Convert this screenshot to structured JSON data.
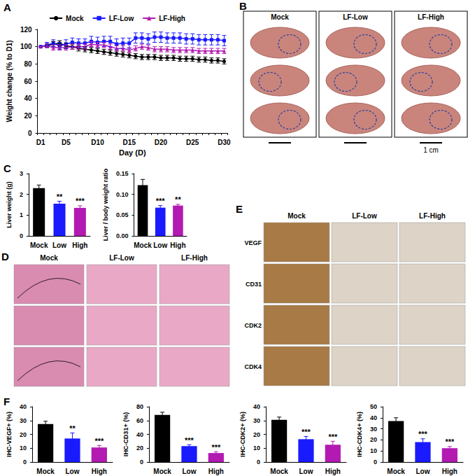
{
  "chart_data": [
    {
      "type": "line",
      "title": "A",
      "x_label": "Day (D)",
      "y_label": "Weight change (% to D1)",
      "categories": [
        "D1",
        null,
        null,
        null,
        "D5",
        null,
        null,
        null,
        null,
        "D10",
        null,
        null,
        null,
        null,
        "D15",
        null,
        null,
        null,
        null,
        "D20",
        null,
        null,
        null,
        null,
        "D25",
        null,
        null,
        null,
        null,
        "D30"
      ],
      "ylim": [
        0,
        120
      ],
      "yticks": [
        0,
        20,
        40,
        60,
        80,
        100,
        120
      ],
      "grid": false,
      "legend": "top",
      "series": [
        {
          "name": "Mock",
          "color": "#000000",
          "marker": "circle",
          "values": [
            100,
            101,
            103,
            104,
            101,
            100,
            98,
            97,
            96,
            95,
            94,
            93,
            92,
            91,
            90,
            89,
            88,
            88,
            88,
            87,
            87,
            87,
            86,
            86,
            86,
            85,
            85,
            84,
            84,
            83
          ],
          "errors": [
            0,
            2,
            3,
            3,
            3,
            3,
            3,
            3,
            3,
            3,
            3,
            3,
            3,
            3,
            3,
            3,
            3,
            3,
            3,
            3,
            3,
            3,
            3,
            3,
            3,
            3,
            3,
            3,
            3,
            3
          ]
        },
        {
          "name": "LF-Low",
          "color": "#1a1aff",
          "marker": "square",
          "values": [
            100,
            102,
            104,
            101,
            103,
            105,
            104,
            104,
            106,
            105,
            106,
            106,
            103,
            104,
            104,
            110,
            110,
            109,
            111,
            111,
            110,
            110,
            110,
            109,
            109,
            108,
            108,
            108,
            108,
            107
          ],
          "errors": [
            0,
            3,
            4,
            4,
            5,
            5,
            5,
            5,
            6,
            6,
            6,
            6,
            6,
            6,
            6,
            6,
            6,
            6,
            6,
            6,
            6,
            6,
            6,
            6,
            6,
            6,
            6,
            6,
            6,
            6
          ]
        },
        {
          "name": "LF-High",
          "color": "#b21ab2",
          "marker": "triangle",
          "values": [
            100,
            101,
            99,
            99,
            99,
            100,
            100,
            100,
            103,
            102,
            102,
            100,
            98,
            98,
            96,
            98,
            100,
            99,
            97,
            97,
            97,
            96,
            96,
            96,
            96,
            95,
            95,
            95,
            95,
            95
          ],
          "errors": [
            0,
            2,
            3,
            3,
            3,
            3,
            3,
            3,
            3,
            3,
            3,
            3,
            3,
            3,
            3,
            3,
            3,
            3,
            3,
            3,
            3,
            3,
            3,
            3,
            3,
            3,
            3,
            3,
            3,
            3
          ]
        }
      ]
    },
    {
      "type": "bar",
      "title": "C",
      "y_label": "Liver weight (g)",
      "categories": [
        "Mock",
        "Low",
        "High"
      ],
      "values": [
        2.3,
        1.55,
        1.35
      ],
      "errors": [
        0.15,
        0.12,
        0.1
      ],
      "annotations": [
        null,
        "**",
        "***"
      ],
      "colors": [
        "#000000",
        "#1a1aff",
        "#b21ab2"
      ],
      "ylim": [
        0,
        3
      ],
      "yticks": [
        0,
        1,
        2,
        3
      ],
      "grid": false
    },
    {
      "type": "bar",
      "y_label": "Liver / body weight ratio",
      "categories": [
        "Mock",
        "Low",
        "High"
      ],
      "values": [
        0.122,
        0.068,
        0.073
      ],
      "errors": [
        0.014,
        0.005,
        0.003
      ],
      "annotations": [
        null,
        "***",
        "**"
      ],
      "colors": [
        "#000000",
        "#1a1aff",
        "#b21ab2"
      ],
      "ylim": [
        0,
        0.15
      ],
      "yticks": [
        {
          "value": 0,
          "label": "0.00"
        },
        {
          "value": 0.05,
          "label": "0.05"
        },
        {
          "value": 0.1,
          "label": "0.10"
        },
        {
          "value": 0.15,
          "label": "0.15"
        }
      ],
      "grid": false
    },
    {
      "type": "bar",
      "title": "F",
      "y_label": "IHC-VEGF+ (%)",
      "categories": [
        "Mock",
        "Low",
        "High"
      ],
      "values": [
        27.5,
        17,
        10.5
      ],
      "errors": [
        2,
        4,
        1.5
      ],
      "annotations": [
        null,
        "**",
        "***"
      ],
      "colors": [
        "#000000",
        "#1a1aff",
        "#b21ab2"
      ],
      "ylim": [
        0,
        40
      ],
      "yticks": [
        0,
        10,
        20,
        30,
        40
      ],
      "grid": false
    },
    {
      "type": "bar",
      "y_label": "IHC-CD31+ (%)",
      "categories": [
        "Mock",
        "Low",
        "High"
      ],
      "values": [
        68,
        23,
        13
      ],
      "errors": [
        4,
        2,
        2
      ],
      "annotations": [
        null,
        "***",
        "***"
      ],
      "colors": [
        "#000000",
        "#1a1aff",
        "#b21ab2"
      ],
      "ylim": [
        0,
        80
      ],
      "yticks": [
        0,
        20,
        40,
        60,
        80
      ],
      "grid": false
    },
    {
      "type": "bar",
      "y_label": "IHC-CDK2+ (%)",
      "categories": [
        "Mock",
        "Low",
        "High"
      ],
      "values": [
        30.5,
        16.5,
        12.5
      ],
      "errors": [
        2,
        2,
        2.5
      ],
      "annotations": [
        null,
        "***",
        "***"
      ],
      "colors": [
        "#000000",
        "#1a1aff",
        "#b21ab2"
      ],
      "ylim": [
        0,
        40
      ],
      "yticks": [
        0,
        10,
        20,
        30,
        40
      ],
      "grid": false
    },
    {
      "type": "bar",
      "y_label": "IHC-CDK4+ (%)",
      "categories": [
        "Mock",
        "Low",
        "High"
      ],
      "values": [
        37,
        18,
        12.5
      ],
      "errors": [
        3,
        3,
        1.5
      ],
      "annotations": [
        null,
        "***",
        "***"
      ],
      "colors": [
        "#000000",
        "#1a1aff",
        "#b21ab2"
      ],
      "ylim": [
        0,
        50
      ],
      "yticks": [
        0,
        10,
        20,
        30,
        40,
        50
      ],
      "grid": false
    }
  ],
  "image_panels": [
    {
      "panel": "B",
      "columns": [
        "Mock",
        "LF-Low",
        "LF-High"
      ],
      "rows": 3,
      "scale_bar": "1 cm"
    },
    {
      "panel": "D",
      "columns": [
        "Mock",
        "LF-Low",
        "LF-High"
      ],
      "rows": 3
    },
    {
      "panel": "E",
      "columns": [
        "Mock",
        "LF-Low",
        "LF-High"
      ],
      "row_labels": [
        "VEGF",
        "CD31",
        "CDK2",
        "CDK4"
      ]
    }
  ]
}
